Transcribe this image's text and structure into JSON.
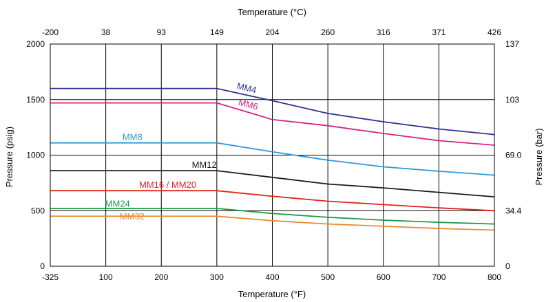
{
  "chart_data": {
    "type": "line",
    "x_bottom": {
      "label": "Temperature (°F)",
      "ticks": [
        "-325",
        "100",
        "200",
        "300",
        "400",
        "500",
        "600",
        "700",
        "800"
      ]
    },
    "x_top": {
      "label": "Temperature (°C)",
      "ticks": [
        "-200",
        "38",
        "93",
        "149",
        "204",
        "260",
        "316",
        "371",
        "426"
      ]
    },
    "y_left": {
      "label": "Pressure (psig)",
      "range": [
        0,
        2000
      ],
      "ticks": [
        {
          "value": 0,
          "text": "0"
        },
        {
          "value": 500,
          "text": "500"
        },
        {
          "value": 1000,
          "text": "1000"
        },
        {
          "value": 1500,
          "text": "1500"
        },
        {
          "value": 2000,
          "text": "2000"
        }
      ]
    },
    "y_right": {
      "label": "Pressure (bar)",
      "ticks": [
        {
          "value": 0,
          "text": "0"
        },
        {
          "value": 500,
          "text": "34.4"
        },
        {
          "value": 1000,
          "text": "69.0"
        },
        {
          "value": 1500,
          "text": "103"
        },
        {
          "value": 2000,
          "text": "137"
        }
      ]
    },
    "grid": true,
    "series": [
      {
        "name": "MM4",
        "color": "#2e3192",
        "points": [
          [
            -325,
            1600
          ],
          [
            300,
            1600
          ],
          [
            400,
            1490
          ],
          [
            500,
            1375
          ],
          [
            600,
            1300
          ],
          [
            700,
            1235
          ],
          [
            800,
            1185
          ]
        ],
        "label_at": [
          335,
          1600
        ],
        "label_rotate": 14
      },
      {
        "name": "MM6",
        "color": "#d6217f",
        "points": [
          [
            -325,
            1470
          ],
          [
            300,
            1470
          ],
          [
            400,
            1320
          ],
          [
            500,
            1265
          ],
          [
            600,
            1195
          ],
          [
            700,
            1130
          ],
          [
            800,
            1090
          ]
        ],
        "label_at": [
          338,
          1450
        ],
        "label_rotate": 14
      },
      {
        "name": "MM8",
        "color": "#2b9bd6",
        "points": [
          [
            -325,
            1110
          ],
          [
            300,
            1110
          ],
          [
            400,
            1030
          ],
          [
            500,
            955
          ],
          [
            600,
            895
          ],
          [
            700,
            855
          ],
          [
            800,
            820
          ]
        ],
        "label_at": [
          130,
          1135
        ],
        "label_rotate": 0
      },
      {
        "name": "MM12",
        "color": "#1a1a1a",
        "points": [
          [
            -325,
            860
          ],
          [
            300,
            860
          ],
          [
            400,
            800
          ],
          [
            500,
            740
          ],
          [
            600,
            705
          ],
          [
            700,
            665
          ],
          [
            800,
            625
          ]
        ],
        "label_at": [
          255,
          885
        ],
        "label_rotate": 0
      },
      {
        "name": "MM16 / MM20",
        "color": "#e2231a",
        "points": [
          [
            -325,
            680
          ],
          [
            300,
            680
          ],
          [
            400,
            630
          ],
          [
            500,
            585
          ],
          [
            600,
            555
          ],
          [
            700,
            525
          ],
          [
            800,
            500
          ]
        ],
        "label_at": [
          160,
          705
        ],
        "label_rotate": 0
      },
      {
        "name": "MM24",
        "color": "#1a9a4a",
        "points": [
          [
            -325,
            520
          ],
          [
            300,
            520
          ],
          [
            400,
            475
          ],
          [
            500,
            440
          ],
          [
            600,
            415
          ],
          [
            700,
            395
          ],
          [
            800,
            380
          ]
        ],
        "label_at": [
          95,
          535
        ],
        "label_rotate": 0
      },
      {
        "name": "MM32",
        "color": "#e88a2c",
        "points": [
          [
            -325,
            450
          ],
          [
            300,
            450
          ],
          [
            400,
            410
          ],
          [
            500,
            380
          ],
          [
            600,
            360
          ],
          [
            700,
            340
          ],
          [
            800,
            325
          ]
        ],
        "label_at": [
          125,
          420
        ],
        "label_rotate": 0
      }
    ]
  }
}
